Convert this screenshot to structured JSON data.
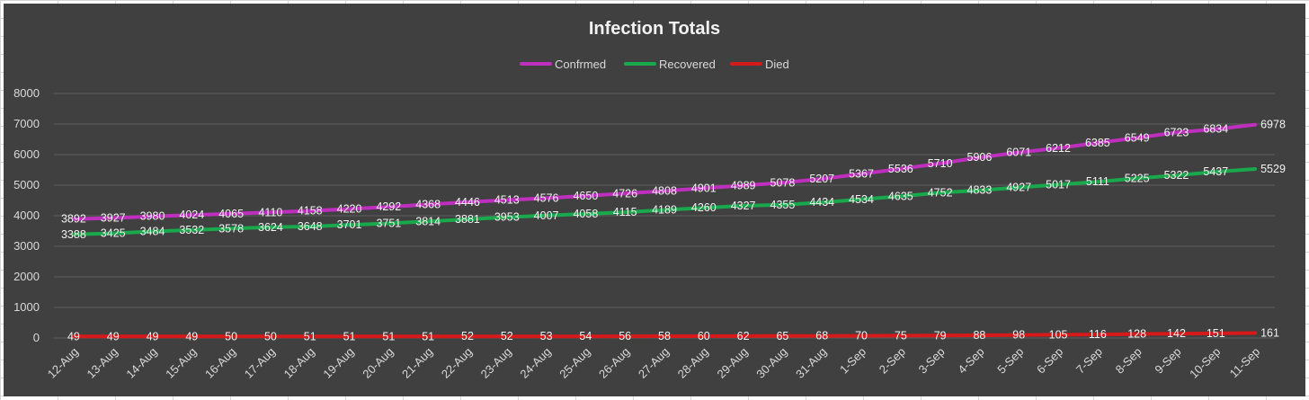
{
  "chart_data": {
    "type": "line",
    "title": "Infection Totals",
    "categories": [
      "12-Aug",
      "13-Aug",
      "14-Aug",
      "15-Aug",
      "16-Aug",
      "17-Aug",
      "18-Aug",
      "19-Aug",
      "20-Aug",
      "21-Aug",
      "22-Aug",
      "23-Aug",
      "24-Aug",
      "25-Aug",
      "26-Aug",
      "27-Aug",
      "28-Aug",
      "29-Aug",
      "30-Aug",
      "31-Aug",
      "1-Sep",
      "2-Sep",
      "3-Sep",
      "4-Sep",
      "5-Sep",
      "6-Sep",
      "7-Sep",
      "8-Sep",
      "9-Sep",
      "10-Sep",
      "11-Sep"
    ],
    "series": [
      {
        "name": "Confrmed",
        "color": "#bf2fbf",
        "values": [
          3892,
          3927,
          3980,
          4024,
          4065,
          4110,
          4158,
          4220,
          4292,
          4368,
          4446,
          4513,
          4576,
          4650,
          4726,
          4808,
          4901,
          4989,
          5078,
          5207,
          5367,
          5536,
          5710,
          5906,
          6071,
          6212,
          6385,
          6549,
          6723,
          6834,
          6978
        ]
      },
      {
        "name": "Recovered",
        "color": "#1aa84c",
        "values": [
          3388,
          3425,
          3484,
          3532,
          3578,
          3624,
          3648,
          3701,
          3751,
          3814,
          3881,
          3953,
          4007,
          4058,
          4115,
          4189,
          4260,
          4327,
          4355,
          4434,
          4534,
          4635,
          4752,
          4833,
          4927,
          5017,
          5111,
          5225,
          5322,
          5437,
          5529
        ]
      },
      {
        "name": "Died",
        "color": "#d61a1a",
        "values": [
          49,
          49,
          49,
          49,
          50,
          50,
          51,
          51,
          51,
          51,
          52,
          52,
          53,
          54,
          56,
          58,
          60,
          62,
          65,
          68,
          70,
          75,
          79,
          88,
          98,
          105,
          116,
          128,
          142,
          151,
          161
        ]
      }
    ],
    "yticks": [
      0,
      1000,
      2000,
      3000,
      4000,
      5000,
      6000,
      7000,
      8000
    ],
    "ylim": [
      0,
      8000
    ],
    "grid": true,
    "legend_position": "top"
  }
}
